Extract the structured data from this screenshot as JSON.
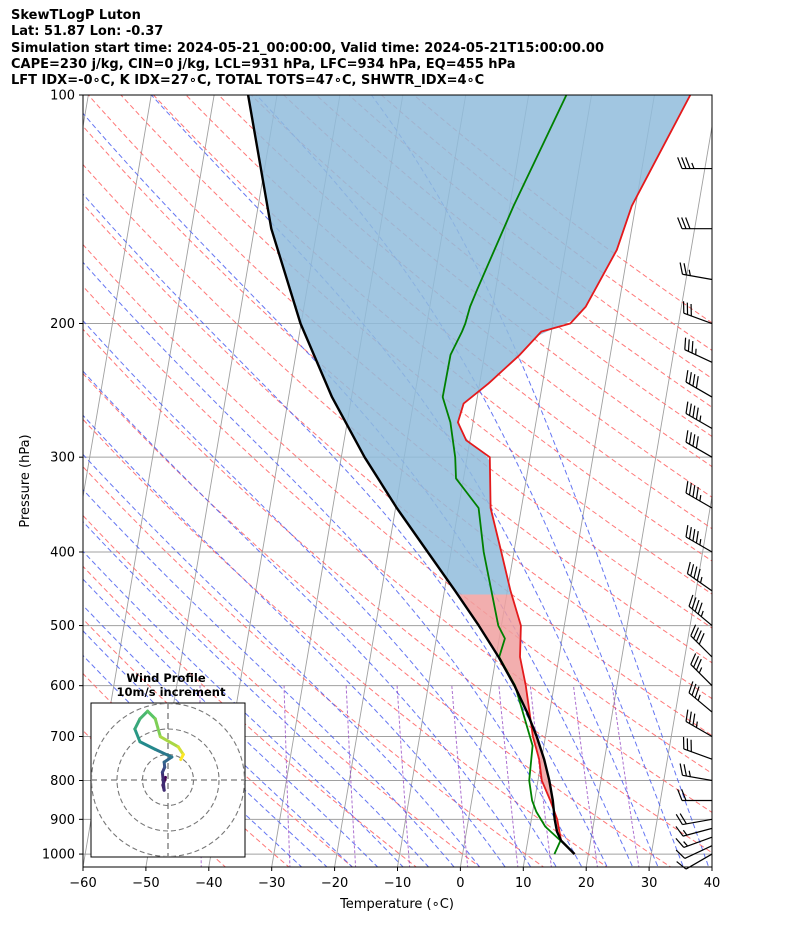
{
  "header": {
    "line1": "SkewTLogP Luton",
    "line2": "Lat: 51.87   Lon: -0.37",
    "line3": "Simulation start time: 2024-05-21_00:00:00, Valid time: 2024-05-21T15:00:00.00",
    "line4": "CAPE=230 j/kg, CIN=0 j/kg, LCL=931 hPa, LFC=934 hPa, EQ=455 hPa",
    "line5": "LFT IDX=-0∘C, K IDX=27∘C, TOTAL TOTS=47∘C, SHWTR_IDX=4∘C"
  },
  "colors": {
    "temperature": "#e41a1c",
    "dewpoint": "#008000",
    "parcel": "#000000",
    "cape_fill": "#f0a0a0",
    "cin_fill": "#90bcdc",
    "dry_adiabat": "#ff6060",
    "moist_adiabat": "#4a5ef0",
    "mixing_ratio": "#9040c0",
    "isotherm": "#a0a0a0",
    "isobar": "#a0a0a0"
  },
  "chart_data": [
    {
      "type": "line",
      "subtype": "skew-T log-P",
      "xlabel": "Temperature (∘C)",
      "ylabel": "Pressure (hPa)",
      "xlim": [
        -60,
        40
      ],
      "ylim": [
        1040,
        100
      ],
      "y_scale": "log",
      "x_ticks": [
        -60,
        -50,
        -40,
        -30,
        -20,
        -10,
        0,
        10,
        20,
        30,
        40
      ],
      "x_tick_labels": [
        "−60",
        "−50",
        "−40",
        "−30",
        "−20",
        "−10",
        "0",
        "10",
        "20",
        "30",
        "40"
      ],
      "y_ticks": [
        1000,
        900,
        800,
        700,
        600,
        500,
        400,
        300,
        200,
        100
      ],
      "y_tick_labels": [
        "1000",
        "900",
        "800",
        "700",
        "600",
        "500",
        "400",
        "300",
        "200",
        "100"
      ],
      "grid": true,
      "series": [
        {
          "key": "temperature",
          "x": [
            17.8,
            15.3,
            14.1,
            12.5,
            10.6,
            9.6,
            8.0,
            5.5,
            3.8,
            3.1,
            0.5,
            -2.0,
            -4.9,
            -6.4,
            -10.6,
            -12.4,
            -12.0,
            -8.6,
            -4.4,
            -1.6,
            2.8,
            4.8,
            8.2,
            9.4,
            15.7
          ],
          "y": [
            1000,
            960,
            900,
            850,
            800,
            750,
            700,
            600,
            550,
            500,
            450,
            400,
            350,
            300,
            285,
            270,
            255,
            240,
            220,
            205,
            200,
            190,
            160,
            140,
            100
          ]
        },
        {
          "key": "dewpoint",
          "x": [
            14.6,
            15.2,
            12.4,
            10.6,
            9.6,
            8.6,
            8.2,
            3.8,
            0.5,
            0.9,
            -0.5,
            -4.8,
            -6.8,
            -11.2,
            -11.9,
            -13.6,
            -15.5,
            -15.4,
            -14.2,
            -13.9,
            -13.6,
            -12.9,
            -9.4,
            -4.0
          ],
          "y": [
            1000,
            960,
            920,
            880,
            850,
            800,
            720,
            600,
            550,
            520,
            500,
            400,
            350,
            320,
            300,
            270,
            250,
            220,
            205,
            200,
            190,
            180,
            140,
            100
          ]
        },
        {
          "key": "parcel",
          "x": [
            17.8,
            15.3,
            14.4,
            13.7,
            12.9,
            11.8,
            10.4,
            8.6,
            6.4,
            3.7,
            0.4,
            -3.6,
            -8.3,
            -13.7,
            -19.8,
            -26.3,
            -33.1,
            -40.1,
            -47.3,
            -54.6
          ],
          "y": [
            1000,
            960,
            934,
            900,
            850,
            800,
            750,
            700,
            650,
            600,
            550,
            500,
            450,
            400,
            350,
            300,
            250,
            200,
            150,
            100
          ]
        }
      ],
      "shaded_regions": [
        {
          "label": "CAPE",
          "between": [
            "parcel",
            "temperature"
          ],
          "pressure_range": [
            934,
            455
          ]
        },
        {
          "label": "CIN",
          "between": [
            "parcel",
            "temperature"
          ],
          "pressure_range": [
            455,
            100
          ]
        }
      ],
      "wind_barbs_pressure": [
        1000,
        975,
        950,
        925,
        900,
        850,
        800,
        750,
        700,
        650,
        600,
        550,
        500,
        450,
        400,
        350,
        300,
        275,
        250,
        225,
        200,
        175,
        150,
        125
      ],
      "wind_barbs_speed_kt": [
        10,
        12,
        15,
        15,
        20,
        20,
        25,
        30,
        35,
        35,
        35,
        40,
        45,
        45,
        45,
        45,
        40,
        45,
        40,
        35,
        30,
        25,
        30,
        35
      ],
      "wind_barbs_dir_deg": [
        240,
        245,
        250,
        255,
        260,
        270,
        280,
        290,
        300,
        310,
        315,
        315,
        310,
        305,
        300,
        300,
        300,
        300,
        300,
        295,
        290,
        280,
        270,
        270
      ]
    },
    {
      "type": "line",
      "subtype": "hodograph",
      "title": "Wind Profile",
      "subtitle": "10m/s increment",
      "rings_ms": [
        10,
        20,
        30
      ],
      "x": [
        -1,
        -2,
        -1.5,
        -2.2,
        -1.3,
        -1.5,
        1.5,
        -5,
        -11,
        -13,
        -11,
        -8,
        -5,
        -3,
        4,
        6,
        5
      ],
      "y": [
        1,
        -2,
        -4,
        3,
        5,
        7,
        9,
        12,
        15,
        20,
        24,
        27,
        24,
        17,
        13,
        10,
        8
      ]
    }
  ]
}
